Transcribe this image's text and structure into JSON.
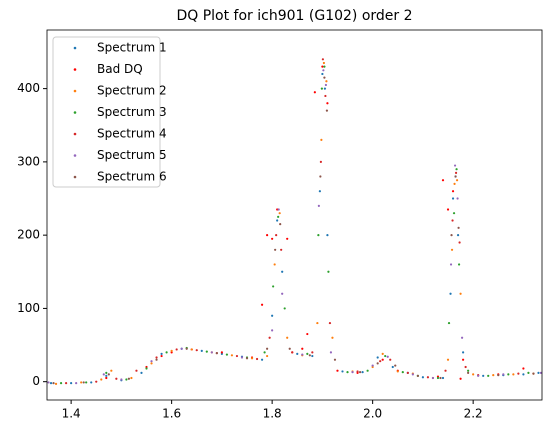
{
  "chart_data": {
    "type": "scatter",
    "title": "DQ Plot for ich901 (G102) order 2",
    "xlim": [
      1.352,
      2.337
    ],
    "ylim": [
      -25,
      480
    ],
    "xticks": [
      1.4,
      1.6,
      1.8,
      {
        "value": 2,
        "label": "2.0"
      },
      2.2
    ],
    "yticks": [
      0,
      100,
      200,
      300,
      400
    ],
    "legend": "upper left",
    "series": [
      {
        "name": "Spectrum 1",
        "color": "#1f77b4",
        "x": [
          1.36,
          1.4,
          1.44,
          1.47,
          1.5,
          1.54,
          1.58,
          1.62,
          1.66,
          1.7,
          1.74,
          1.78,
          1.8,
          1.81,
          1.82,
          1.85,
          1.88,
          1.895,
          1.9,
          1.905,
          1.91,
          1.94,
          1.98,
          2.01,
          2.04,
          2.07,
          2.1,
          2.14,
          2.155,
          2.16,
          2.165,
          2.17,
          2.18,
          2.22,
          2.26,
          2.3,
          2.33
        ],
        "values": [
          -2,
          -2,
          -1,
          8,
          2,
          12,
          38,
          45,
          42,
          38,
          34,
          30,
          90,
          220,
          150,
          38,
          35,
          260,
          420,
          400,
          200,
          14,
          13,
          33,
          20,
          12,
          6,
          5,
          120,
          250,
          280,
          200,
          40,
          8,
          9,
          10,
          12
        ]
      },
      {
        "name": "Bad DQ",
        "color": "#ff0000",
        "x": [
          1.47,
          1.55,
          1.58,
          1.6,
          1.64,
          1.7,
          1.76,
          1.78,
          1.79,
          1.8,
          1.81,
          1.83,
          1.84,
          1.86,
          1.87,
          1.885,
          1.9,
          1.91,
          1.93,
          1.97,
          2.02,
          2.05,
          2.13,
          2.14,
          2.15,
          2.16,
          2.175,
          2.18,
          2.25,
          2.3
        ],
        "values": [
          5,
          20,
          35,
          40,
          44,
          40,
          33,
          105,
          200,
          195,
          235,
          195,
          40,
          45,
          65,
          395,
          430,
          380,
          15,
          12,
          30,
          15,
          7,
          275,
          235,
          260,
          4,
          30,
          10,
          18
        ]
      },
      {
        "name": "Spectrum 2",
        "color": "#ff7f0e",
        "x": [
          1.37,
          1.42,
          1.46,
          1.48,
          1.52,
          1.56,
          1.6,
          1.64,
          1.68,
          1.72,
          1.76,
          1.79,
          1.805,
          1.815,
          1.83,
          1.86,
          1.89,
          1.898,
          1.903,
          1.908,
          1.92,
          1.96,
          2.0,
          2.02,
          2.05,
          2.08,
          2.12,
          2.15,
          2.158,
          2.163,
          2.168,
          2.175,
          2.2,
          2.24,
          2.28,
          2.32
        ],
        "values": [
          -3,
          -1,
          3,
          15,
          5,
          25,
          42,
          44,
          40,
          36,
          32,
          35,
          160,
          230,
          60,
          36,
          80,
          330,
          435,
          410,
          60,
          14,
          20,
          38,
          14,
          11,
          5,
          30,
          180,
          270,
          275,
          120,
          10,
          9,
          10,
          11
        ]
      },
      {
        "name": "Spectrum 3",
        "color": "#2ca02c",
        "x": [
          1.38,
          1.43,
          1.47,
          1.51,
          1.55,
          1.59,
          1.63,
          1.67,
          1.71,
          1.75,
          1.785,
          1.802,
          1.812,
          1.825,
          1.87,
          1.892,
          1.899,
          1.904,
          1.912,
          1.95,
          1.99,
          2.025,
          2.06,
          2.09,
          2.13,
          2.152,
          2.162,
          2.167,
          2.172,
          2.19,
          2.23,
          2.27,
          2.31
        ],
        "values": [
          -2,
          -1,
          12,
          3,
          18,
          40,
          46,
          41,
          37,
          33,
          40,
          130,
          225,
          100,
          38,
          200,
          400,
          430,
          150,
          13,
          15,
          35,
          13,
          8,
          5,
          80,
          230,
          290,
          160,
          15,
          8,
          10,
          12
        ]
      },
      {
        "name": "Spectrum 4",
        "color": "#d62728",
        "x": [
          1.39,
          1.45,
          1.49,
          1.53,
          1.57,
          1.61,
          1.65,
          1.69,
          1.73,
          1.77,
          1.795,
          1.808,
          1.818,
          1.84,
          1.88,
          1.897,
          1.901,
          1.906,
          1.915,
          1.97,
          2.015,
          2.035,
          2.07,
          2.11,
          2.145,
          2.159,
          2.166,
          2.173,
          2.185,
          2.21,
          2.29
        ],
        "values": [
          -2,
          0,
          4,
          15,
          33,
          44,
          43,
          39,
          35,
          31,
          60,
          200,
          180,
          40,
          40,
          300,
          440,
          390,
          80,
          14,
          28,
          30,
          12,
          6,
          15,
          220,
          285,
          190,
          20,
          9,
          11
        ]
      },
      {
        "name": "Spectrum 5",
        "color": "#9467bd",
        "x": [
          1.355,
          1.41,
          1.465,
          1.5,
          1.56,
          1.62,
          1.68,
          1.74,
          1.8,
          1.813,
          1.82,
          1.86,
          1.893,
          1.902,
          1.907,
          1.917,
          1.96,
          2.0,
          2.03,
          2.08,
          2.12,
          2.156,
          2.164,
          2.169,
          2.178,
          2.21,
          2.26,
          2.335
        ],
        "values": [
          -1,
          -2,
          10,
          3,
          28,
          45,
          40,
          33,
          70,
          235,
          120,
          37,
          240,
          425,
          405,
          40,
          13,
          22,
          34,
          10,
          5,
          160,
          295,
          250,
          60,
          8,
          10,
          12
        ]
      },
      {
        "name": "Spectrum 6",
        "color": "#8c564b",
        "x": [
          1.365,
          1.425,
          1.475,
          1.515,
          1.57,
          1.63,
          1.69,
          1.75,
          1.79,
          1.806,
          1.816,
          1.835,
          1.875,
          1.896,
          1.904,
          1.909,
          1.925,
          1.975,
          2.01,
          2.045,
          2.09,
          2.135,
          2.157,
          2.165,
          2.171,
          2.19,
          2.25,
          2.32
        ],
        "values": [
          -2,
          -1,
          10,
          4,
          30,
          45,
          39,
          32,
          45,
          180,
          215,
          45,
          36,
          280,
          415,
          370,
          30,
          13,
          25,
          22,
          8,
          5,
          200,
          280,
          210,
          12,
          9,
          11
        ]
      }
    ]
  }
}
